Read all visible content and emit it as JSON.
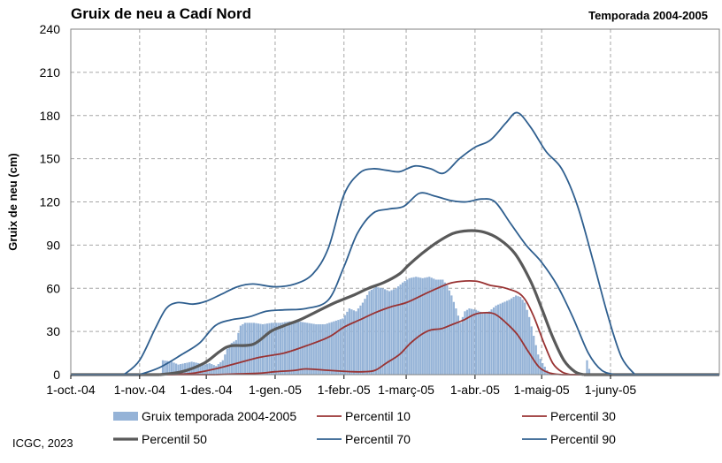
{
  "title": "Gruix de neu a Cadí Nord",
  "season_label": "Temporada 2004-2005",
  "footer": "ICGC, 2023",
  "colors": {
    "bars": "#95b3d7",
    "p10": "#993333",
    "p30": "#993333",
    "p50": "#595959",
    "p70": "#2f5f8f",
    "p90": "#2f5f8f",
    "grid": "#a6a6a6"
  },
  "chart_data": {
    "type": "bar+line",
    "title": "Gruix de neu a Cadí Nord",
    "subtitle": "Temporada 2004-2005",
    "ylabel": "Gruix de neu (cm)",
    "xlabel": "",
    "ylim": [
      0,
      240
    ],
    "yticks": [
      "0",
      "30",
      "60",
      "90",
      "120",
      "150",
      "180",
      "210",
      "240"
    ],
    "x_range": [
      "2004-10-01",
      "2005-07-20"
    ],
    "x_ticks": [
      {
        "date": "2004-10-01",
        "label": "1-oct.-04"
      },
      {
        "date": "2004-11-01",
        "label": "1-nov.-04"
      },
      {
        "date": "2004-12-01",
        "label": "1-des.-04"
      },
      {
        "date": "2005-01-01",
        "label": "1-gen.-05"
      },
      {
        "date": "2005-02-01",
        "label": "1-febr.-05"
      },
      {
        "date": "2005-03-01",
        "label": "1-març-05"
      },
      {
        "date": "2005-04-01",
        "label": "1-abr.-05"
      },
      {
        "date": "2005-05-01",
        "label": "1-maig-05"
      },
      {
        "date": "2005-06-01",
        "label": "1-juny-05"
      }
    ],
    "grid": true,
    "legend_position": "bottom",
    "bars": {
      "name": "Gruix temporada 2004-2005",
      "points": [
        [
          "2004-11-10",
          0
        ],
        [
          "2004-11-11",
          10
        ],
        [
          "2004-11-15",
          9
        ],
        [
          "2004-11-18",
          7
        ],
        [
          "2004-11-21",
          8
        ],
        [
          "2004-11-24",
          9
        ],
        [
          "2004-11-27",
          8
        ],
        [
          "2004-11-30",
          7
        ],
        [
          "2004-12-02",
          8
        ],
        [
          "2004-12-05",
          6
        ],
        [
          "2004-12-08",
          10
        ],
        [
          "2004-12-10",
          18
        ],
        [
          "2004-12-12",
          22
        ],
        [
          "2004-12-14",
          24
        ],
        [
          "2004-12-16",
          34
        ],
        [
          "2004-12-18",
          36
        ],
        [
          "2004-12-22",
          36
        ],
        [
          "2004-12-26",
          35
        ],
        [
          "2004-12-30",
          36
        ],
        [
          "2005-01-03",
          36
        ],
        [
          "2005-01-07",
          37
        ],
        [
          "2005-01-11",
          37
        ],
        [
          "2005-01-15",
          36
        ],
        [
          "2005-01-19",
          35
        ],
        [
          "2005-01-23",
          35
        ],
        [
          "2005-01-27",
          37
        ],
        [
          "2005-01-31",
          39
        ],
        [
          "2005-02-03",
          46
        ],
        [
          "2005-02-06",
          44
        ],
        [
          "2005-02-09",
          50
        ],
        [
          "2005-02-12",
          58
        ],
        [
          "2005-02-15",
          61
        ],
        [
          "2005-02-18",
          60
        ],
        [
          "2005-02-21",
          58
        ],
        [
          "2005-02-24",
          60
        ],
        [
          "2005-02-27",
          64
        ],
        [
          "2005-03-02",
          67
        ],
        [
          "2005-03-05",
          68
        ],
        [
          "2005-03-08",
          67
        ],
        [
          "2005-03-11",
          68
        ],
        [
          "2005-03-14",
          66
        ],
        [
          "2005-03-17",
          66
        ],
        [
          "2005-03-19",
          62
        ],
        [
          "2005-03-21",
          55
        ],
        [
          "2005-03-23",
          46
        ],
        [
          "2005-03-25",
          36
        ],
        [
          "2005-03-27",
          44
        ],
        [
          "2005-03-29",
          46
        ],
        [
          "2005-04-01",
          45
        ],
        [
          "2005-04-04",
          43
        ],
        [
          "2005-04-07",
          44
        ],
        [
          "2005-04-10",
          48
        ],
        [
          "2005-04-13",
          50
        ],
        [
          "2005-04-16",
          52
        ],
        [
          "2005-04-19",
          55
        ],
        [
          "2005-04-21",
          54
        ],
        [
          "2005-04-23",
          50
        ],
        [
          "2005-04-25",
          40
        ],
        [
          "2005-04-27",
          27
        ],
        [
          "2005-04-29",
          14
        ],
        [
          "2005-05-01",
          8
        ],
        [
          "2005-05-03",
          3
        ],
        [
          "2005-05-05",
          0
        ],
        [
          "2005-05-20",
          0
        ],
        [
          "2005-05-21",
          10
        ],
        [
          "2005-05-22",
          4
        ],
        [
          "2005-05-23",
          0
        ]
      ]
    },
    "series": [
      {
        "name": "Percentil 10",
        "style": "p10",
        "points": [
          [
            "2004-12-05",
            0
          ],
          [
            "2004-12-15",
            0.5
          ],
          [
            "2004-12-25",
            1
          ],
          [
            "2005-01-01",
            2
          ],
          [
            "2005-01-10",
            3
          ],
          [
            "2005-01-15",
            4
          ],
          [
            "2005-01-25",
            3
          ],
          [
            "2005-02-05",
            2
          ],
          [
            "2005-02-10",
            2
          ],
          [
            "2005-02-15",
            3
          ],
          [
            "2005-02-20",
            8
          ],
          [
            "2005-02-26",
            14
          ],
          [
            "2005-03-03",
            22
          ],
          [
            "2005-03-08",
            28
          ],
          [
            "2005-03-12",
            31
          ],
          [
            "2005-03-17",
            32
          ],
          [
            "2005-03-22",
            35
          ],
          [
            "2005-03-27",
            38
          ],
          [
            "2005-04-01",
            42
          ],
          [
            "2005-04-06",
            43
          ],
          [
            "2005-04-10",
            42
          ],
          [
            "2005-04-15",
            36
          ],
          [
            "2005-04-20",
            28
          ],
          [
            "2005-04-25",
            16
          ],
          [
            "2005-04-30",
            5
          ],
          [
            "2005-05-05",
            1
          ],
          [
            "2005-05-10",
            0
          ]
        ]
      },
      {
        "name": "Percentil 30",
        "style": "p30",
        "points": [
          [
            "2004-11-15",
            0
          ],
          [
            "2004-11-25",
            1
          ],
          [
            "2004-12-05",
            4
          ],
          [
            "2004-12-15",
            8
          ],
          [
            "2004-12-25",
            12
          ],
          [
            "2005-01-05",
            15
          ],
          [
            "2005-01-15",
            20
          ],
          [
            "2005-01-25",
            26
          ],
          [
            "2005-02-01",
            33
          ],
          [
            "2005-02-08",
            38
          ],
          [
            "2005-02-15",
            43
          ],
          [
            "2005-02-22",
            47
          ],
          [
            "2005-03-01",
            50
          ],
          [
            "2005-03-08",
            55
          ],
          [
            "2005-03-15",
            60
          ],
          [
            "2005-03-22",
            64
          ],
          [
            "2005-04-01",
            65
          ],
          [
            "2005-04-08",
            62
          ],
          [
            "2005-04-15",
            60
          ],
          [
            "2005-04-22",
            55
          ],
          [
            "2005-04-27",
            42
          ],
          [
            "2005-05-02",
            22
          ],
          [
            "2005-05-06",
            8
          ],
          [
            "2005-05-10",
            2
          ],
          [
            "2005-05-14",
            0
          ]
        ]
      },
      {
        "name": "Percentil 50",
        "style": "p50",
        "points": [
          [
            "2004-11-10",
            0
          ],
          [
            "2004-11-20",
            2
          ],
          [
            "2004-11-30",
            8
          ],
          [
            "2004-12-07",
            16
          ],
          [
            "2004-12-12",
            20
          ],
          [
            "2004-12-22",
            21
          ],
          [
            "2004-12-30",
            30
          ],
          [
            "2005-01-05",
            34
          ],
          [
            "2005-01-12",
            38
          ],
          [
            "2005-01-20",
            44
          ],
          [
            "2005-01-28",
            50
          ],
          [
            "2005-02-05",
            55
          ],
          [
            "2005-02-12",
            60
          ],
          [
            "2005-02-19",
            64
          ],
          [
            "2005-02-26",
            70
          ],
          [
            "2005-03-02",
            76
          ],
          [
            "2005-03-08",
            84
          ],
          [
            "2005-03-15",
            92
          ],
          [
            "2005-03-22",
            98
          ],
          [
            "2005-03-29",
            100
          ],
          [
            "2005-04-05",
            99
          ],
          [
            "2005-04-12",
            94
          ],
          [
            "2005-04-19",
            84
          ],
          [
            "2005-04-26",
            65
          ],
          [
            "2005-05-01",
            46
          ],
          [
            "2005-05-06",
            26
          ],
          [
            "2005-05-11",
            10
          ],
          [
            "2005-05-16",
            2
          ],
          [
            "2005-05-20",
            0
          ]
        ]
      },
      {
        "name": "Percentil 70",
        "style": "p70",
        "points": [
          [
            "2004-11-01",
            0
          ],
          [
            "2004-11-10",
            5
          ],
          [
            "2004-11-20",
            14
          ],
          [
            "2004-11-28",
            22
          ],
          [
            "2004-12-05",
            34
          ],
          [
            "2004-12-12",
            38
          ],
          [
            "2004-12-20",
            40
          ],
          [
            "2004-12-28",
            44
          ],
          [
            "2005-01-05",
            45
          ],
          [
            "2005-01-15",
            46
          ],
          [
            "2005-01-25",
            52
          ],
          [
            "2005-02-01",
            75
          ],
          [
            "2005-02-07",
            98
          ],
          [
            "2005-02-14",
            112
          ],
          [
            "2005-02-21",
            115
          ],
          [
            "2005-02-28",
            117
          ],
          [
            "2005-03-07",
            126
          ],
          [
            "2005-03-14",
            124
          ],
          [
            "2005-03-21",
            121
          ],
          [
            "2005-03-28",
            120
          ],
          [
            "2005-04-04",
            122
          ],
          [
            "2005-04-10",
            120
          ],
          [
            "2005-04-17",
            105
          ],
          [
            "2005-04-24",
            90
          ],
          [
            "2005-05-01",
            78
          ],
          [
            "2005-05-08",
            62
          ],
          [
            "2005-05-15",
            40
          ],
          [
            "2005-05-22",
            15
          ],
          [
            "2005-05-28",
            3
          ],
          [
            "2005-06-03",
            0
          ]
        ]
      },
      {
        "name": "Percentil 90",
        "style": "p90",
        "points": [
          [
            "2004-10-25",
            0
          ],
          [
            "2004-11-01",
            10
          ],
          [
            "2004-11-08",
            32
          ],
          [
            "2004-11-13",
            46
          ],
          [
            "2004-11-18",
            50
          ],
          [
            "2004-11-25",
            49
          ],
          [
            "2004-12-01",
            51
          ],
          [
            "2004-12-08",
            56
          ],
          [
            "2004-12-15",
            61
          ],
          [
            "2004-12-22",
            63
          ],
          [
            "2005-01-01",
            61
          ],
          [
            "2005-01-10",
            63
          ],
          [
            "2005-01-18",
            70
          ],
          [
            "2005-01-25",
            88
          ],
          [
            "2005-02-01",
            125
          ],
          [
            "2005-02-08",
            140
          ],
          [
            "2005-02-14",
            143
          ],
          [
            "2005-02-20",
            142
          ],
          [
            "2005-02-26",
            141
          ],
          [
            "2005-03-05",
            145
          ],
          [
            "2005-03-12",
            143
          ],
          [
            "2005-03-18",
            140
          ],
          [
            "2005-03-25",
            150
          ],
          [
            "2005-04-01",
            158
          ],
          [
            "2005-04-08",
            163
          ],
          [
            "2005-04-15",
            175
          ],
          [
            "2005-04-20",
            182
          ],
          [
            "2005-04-26",
            172
          ],
          [
            "2005-05-03",
            155
          ],
          [
            "2005-05-10",
            143
          ],
          [
            "2005-05-17",
            118
          ],
          [
            "2005-05-24",
            80
          ],
          [
            "2005-05-31",
            40
          ],
          [
            "2005-06-06",
            12
          ],
          [
            "2005-06-12",
            0
          ]
        ]
      }
    ],
    "legend": [
      {
        "label": "Gruix temporada 2004-2005",
        "style": "bars"
      },
      {
        "label": "Percentil 10",
        "style": "p10"
      },
      {
        "label": "Percentil 30",
        "style": "p30"
      },
      {
        "label": "Percentil 50",
        "style": "p50"
      },
      {
        "label": "Percentil 70",
        "style": "p70"
      },
      {
        "label": "Percentil 90",
        "style": "p90"
      }
    ]
  }
}
